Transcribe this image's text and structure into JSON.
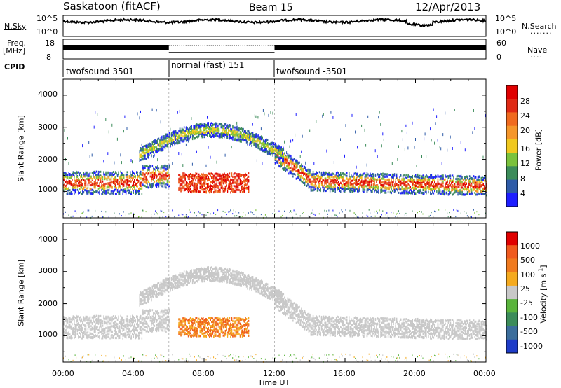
{
  "header": {
    "station": "Saskatoon (fitACF)",
    "beam": "Beam 15",
    "date": "12/Apr/2013"
  },
  "strip": {
    "nsky_label": "N.Sky",
    "nsearch_label": "N.Search",
    "nsky_ticks": [
      "10^5",
      "10^0"
    ],
    "nsearch_ticks": [
      "10^5",
      "10^0"
    ],
    "freq_label": "Freq.",
    "freq_unit": "[MHz]",
    "freq_ticks": [
      "18",
      "8"
    ],
    "nave_label": "Nave",
    "nave_ticks": [
      "60",
      "0"
    ],
    "cpid_label": "CPID",
    "cpid_segments": [
      {
        "label": "twofsound 3501",
        "start_hour": 0,
        "end_hour": 6
      },
      {
        "label": "normal (fast) 151",
        "start_hour": 6,
        "end_hour": 12
      },
      {
        "label": "twofsound -3501",
        "start_hour": 12,
        "end_hour": 24
      }
    ]
  },
  "colors": {
    "power_scale": [
      "#1e1eff",
      "#2e5ba8",
      "#3c8c5a",
      "#7ac23c",
      "#f0c81e",
      "#f5962a",
      "#f06a1e",
      "#e02a14",
      "#e00000"
    ],
    "velocity_scale": [
      "#1e3cc8",
      "#3c6e9c",
      "#3c8c5a",
      "#5ab43c",
      "#c8c8c8",
      "#f5aa1e",
      "#f07a1e",
      "#f05a1e",
      "#e00000"
    ]
  },
  "chart_data": [
    {
      "type": "heatmap",
      "title": "",
      "xlabel": "Time UT",
      "ylabel": "Slant Range [km]",
      "x_range_hours": [
        0,
        24
      ],
      "x_ticks": [
        "00:00",
        "04:00",
        "08:00",
        "12:00",
        "16:00",
        "20:00",
        "00:00"
      ],
      "ylim": [
        180,
        4500
      ],
      "y_ticks": [
        1000,
        2000,
        3000,
        4000
      ],
      "colorbar_label": "Power [dB]",
      "colorbar_ticks": [
        "28",
        "24",
        "20",
        "16",
        "12",
        "8",
        "4"
      ],
      "colorbar_range": [
        0,
        30
      ]
    },
    {
      "type": "heatmap",
      "title": "",
      "xlabel": "Time UT",
      "ylabel": "Slant Range [km]",
      "x_range_hours": [
        0,
        24
      ],
      "x_ticks": [
        "00:00",
        "04:00",
        "08:00",
        "12:00",
        "16:00",
        "20:00",
        "00:00"
      ],
      "ylim": [
        180,
        4500
      ],
      "y_ticks": [
        1000,
        2000,
        3000,
        4000
      ],
      "colorbar_label": "Velocity [m s",
      "colorbar_unit_sup": "-1",
      "colorbar_close": "]",
      "colorbar_ticks": [
        "1000",
        "500",
        "100",
        "25",
        "-25",
        "-100",
        "-500",
        "-1000"
      ]
    }
  ]
}
